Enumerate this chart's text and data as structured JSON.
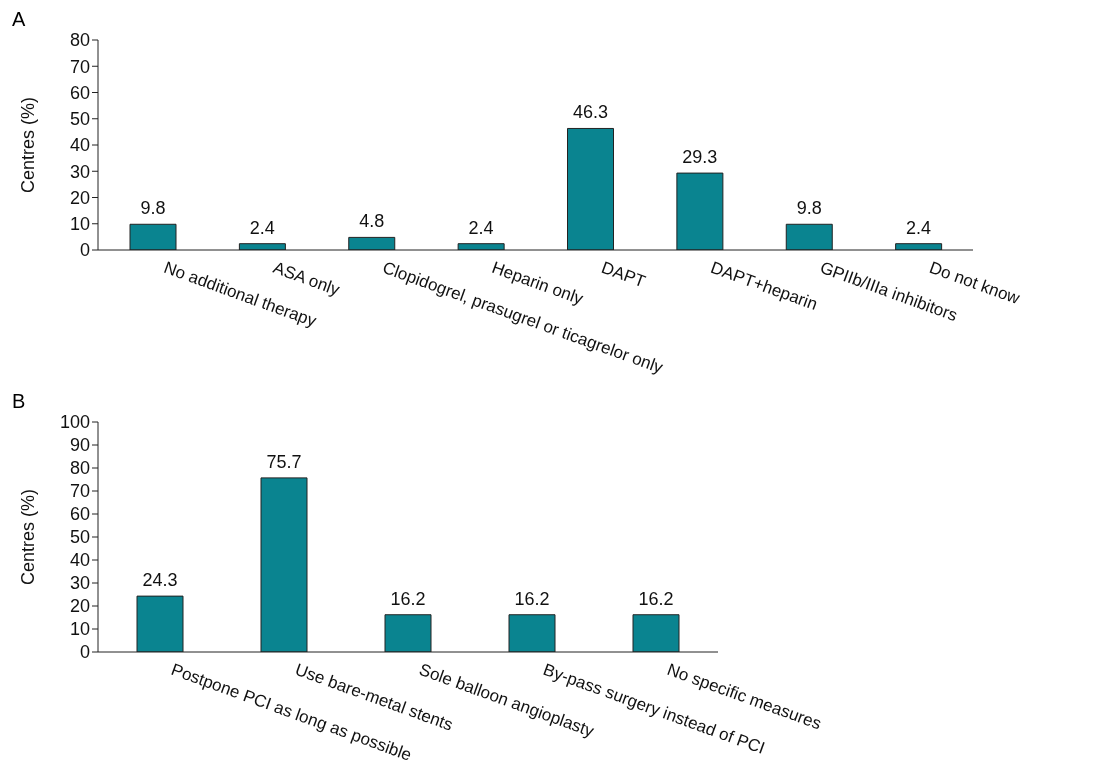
{
  "chart_data": [
    {
      "type": "bar",
      "title": "A",
      "ylabel": "Centres (%)",
      "categories": [
        "No additional therapy",
        "ASA only",
        "Clopidogrel, prasugrel or ticagrelor only",
        "Heparin only",
        "DAPT",
        "DAPT+heparin",
        "GPIIb/IIIa inhibitors",
        "Do not know"
      ],
      "values": [
        9.8,
        2.4,
        4.8,
        2.4,
        46.3,
        29.3,
        9.8,
        2.4
      ],
      "color": "#0a8490",
      "ylim": [
        0,
        80
      ],
      "yticks": [
        0,
        10,
        20,
        30,
        40,
        50,
        60,
        70,
        80
      ],
      "data_labels": true,
      "grid": false,
      "legend": false
    },
    {
      "type": "bar",
      "title": "B",
      "ylabel": "Centres (%)",
      "categories": [
        "Postpone PCI as long as possible",
        "Use bare-metal stents",
        "Sole balloon angioplasty",
        "By-pass surgery instead of PCI",
        "No specific measures"
      ],
      "values": [
        24.3,
        75.7,
        16.2,
        16.2,
        16.2
      ],
      "color": "#0a8490",
      "ylim": [
        0,
        100
      ],
      "yticks": [
        0,
        10,
        20,
        30,
        40,
        50,
        60,
        70,
        80,
        90,
        100
      ],
      "data_labels": true,
      "grid": false,
      "legend": false
    }
  ]
}
